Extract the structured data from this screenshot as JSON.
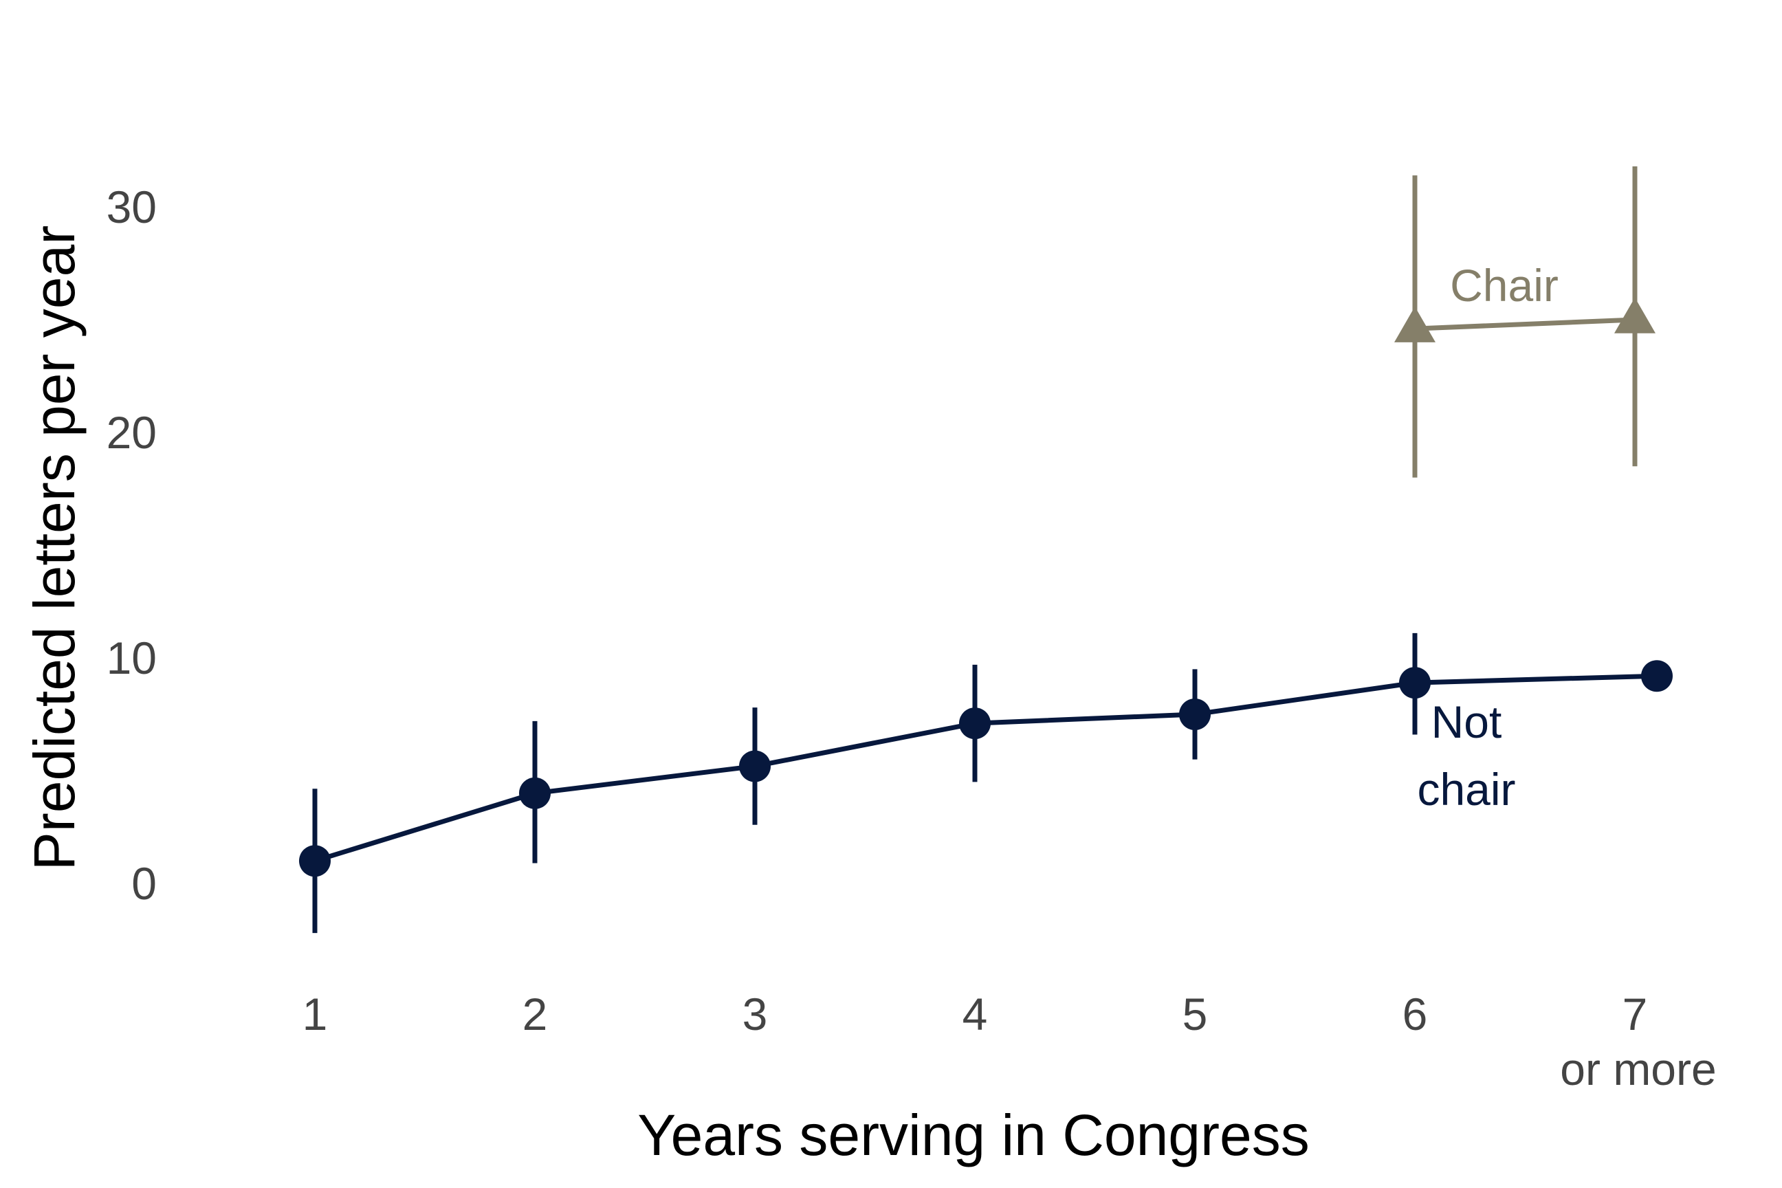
{
  "colors": {
    "not_chair": "#07183d",
    "chair": "#857f69",
    "tick_text": "#444444",
    "axis_text": "#000000"
  },
  "chart_data": {
    "type": "line",
    "xlabel": "Years serving in Congress",
    "ylabel": "Predicted letters per year",
    "x_ticks": [
      {
        "value": 1,
        "label": "1",
        "sublabel": ""
      },
      {
        "value": 2,
        "label": "2",
        "sublabel": ""
      },
      {
        "value": 3,
        "label": "3",
        "sublabel": ""
      },
      {
        "value": 4,
        "label": "4",
        "sublabel": ""
      },
      {
        "value": 5,
        "label": "5",
        "sublabel": ""
      },
      {
        "value": 6,
        "label": "6",
        "sublabel": ""
      },
      {
        "value": 7,
        "label": "7",
        "sublabel": "or more"
      }
    ],
    "y_ticks": [
      0,
      10,
      20,
      30
    ],
    "ylim": [
      -5,
      33
    ],
    "xlim": [
      0.5,
      7.5
    ],
    "grid": false,
    "legend": "none (direct labels)",
    "series": [
      {
        "name_lines": [
          "Not",
          "chair"
        ],
        "marker": "circle",
        "color_key": "not_chair",
        "points": [
          {
            "x": 1,
            "y": 1.0,
            "lo": -2.2,
            "hi": 4.2
          },
          {
            "x": 2,
            "y": 4.0,
            "lo": 0.9,
            "hi": 7.2
          },
          {
            "x": 3,
            "y": 5.2,
            "lo": 2.6,
            "hi": 7.8
          },
          {
            "x": 4,
            "y": 7.1,
            "lo": 4.5,
            "hi": 9.7
          },
          {
            "x": 5,
            "y": 7.5,
            "lo": 5.5,
            "hi": 9.5
          },
          {
            "x": 6,
            "y": 8.9,
            "lo": 6.6,
            "hi": 11.1
          },
          {
            "x": 7.1,
            "y": 9.2,
            "lo": null,
            "hi": null
          }
        ]
      },
      {
        "name_lines": [
          "Chair"
        ],
        "marker": "triangle",
        "color_key": "chair",
        "points": [
          {
            "x": 6,
            "y": 24.6,
            "lo": 18.0,
            "hi": 31.4
          },
          {
            "x": 7,
            "y": 25.0,
            "lo": 18.5,
            "hi": 31.8
          }
        ]
      }
    ]
  }
}
